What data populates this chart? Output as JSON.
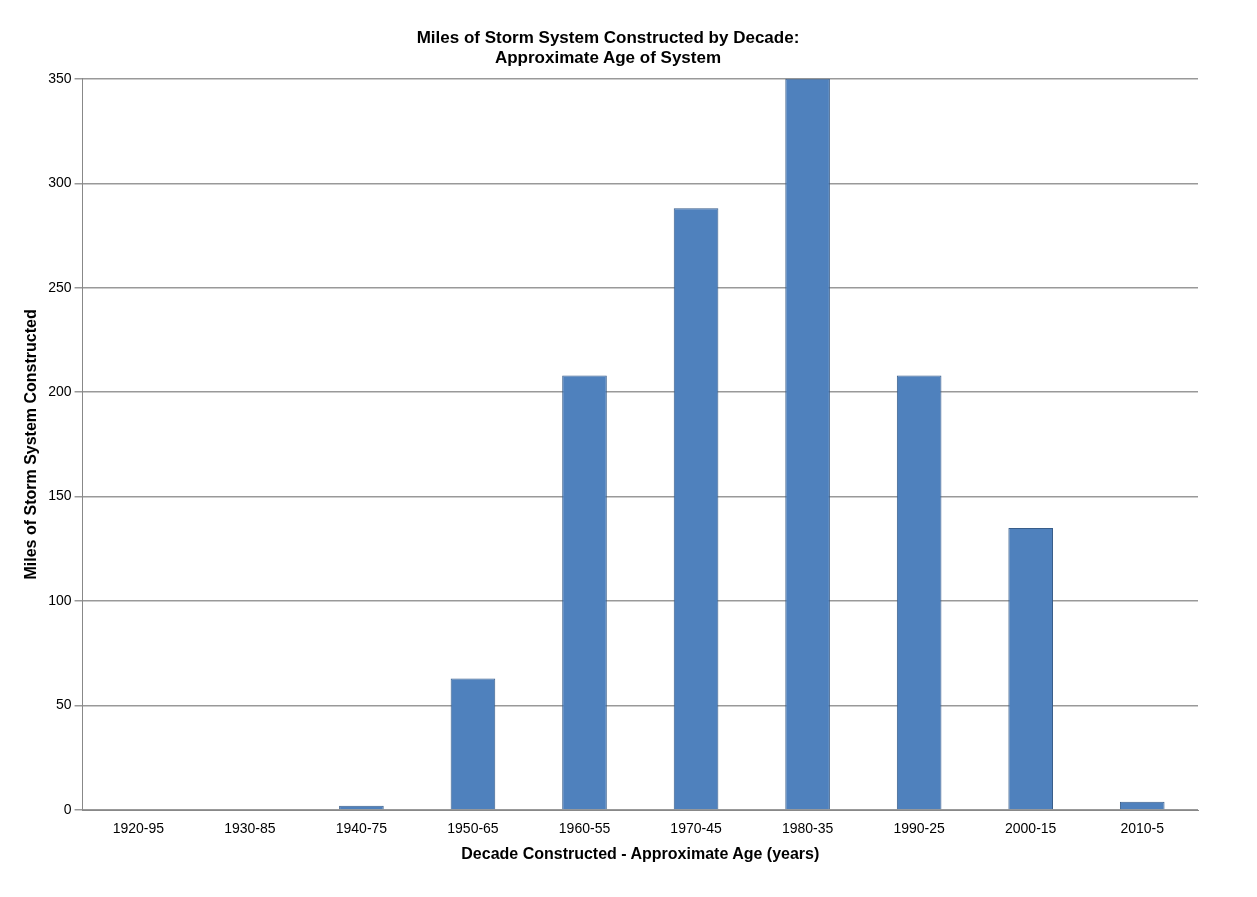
{
  "chart_data": {
    "type": "bar",
    "title": "Miles of Storm System Constructed by Decade:\nApproximate Age of System",
    "xlabel": "Decade Constructed - Approximate Age (years)",
    "ylabel": "Miles of Storm System Constructed",
    "categories": [
      "1920-95",
      "1930-85",
      "1940-75",
      "1950-65",
      "1960-55",
      "1970-45",
      "1980-35",
      "1990-25",
      "2000-15",
      "2010-5"
    ],
    "values": [
      0,
      0,
      2,
      63,
      208,
      288,
      350,
      208,
      135,
      4
    ],
    "color": "#4f81bd",
    "ylim": [
      0,
      350
    ],
    "yticks": [
      0,
      50,
      100,
      150,
      200,
      250,
      300,
      350
    ],
    "grid": "y",
    "legend": false
  }
}
